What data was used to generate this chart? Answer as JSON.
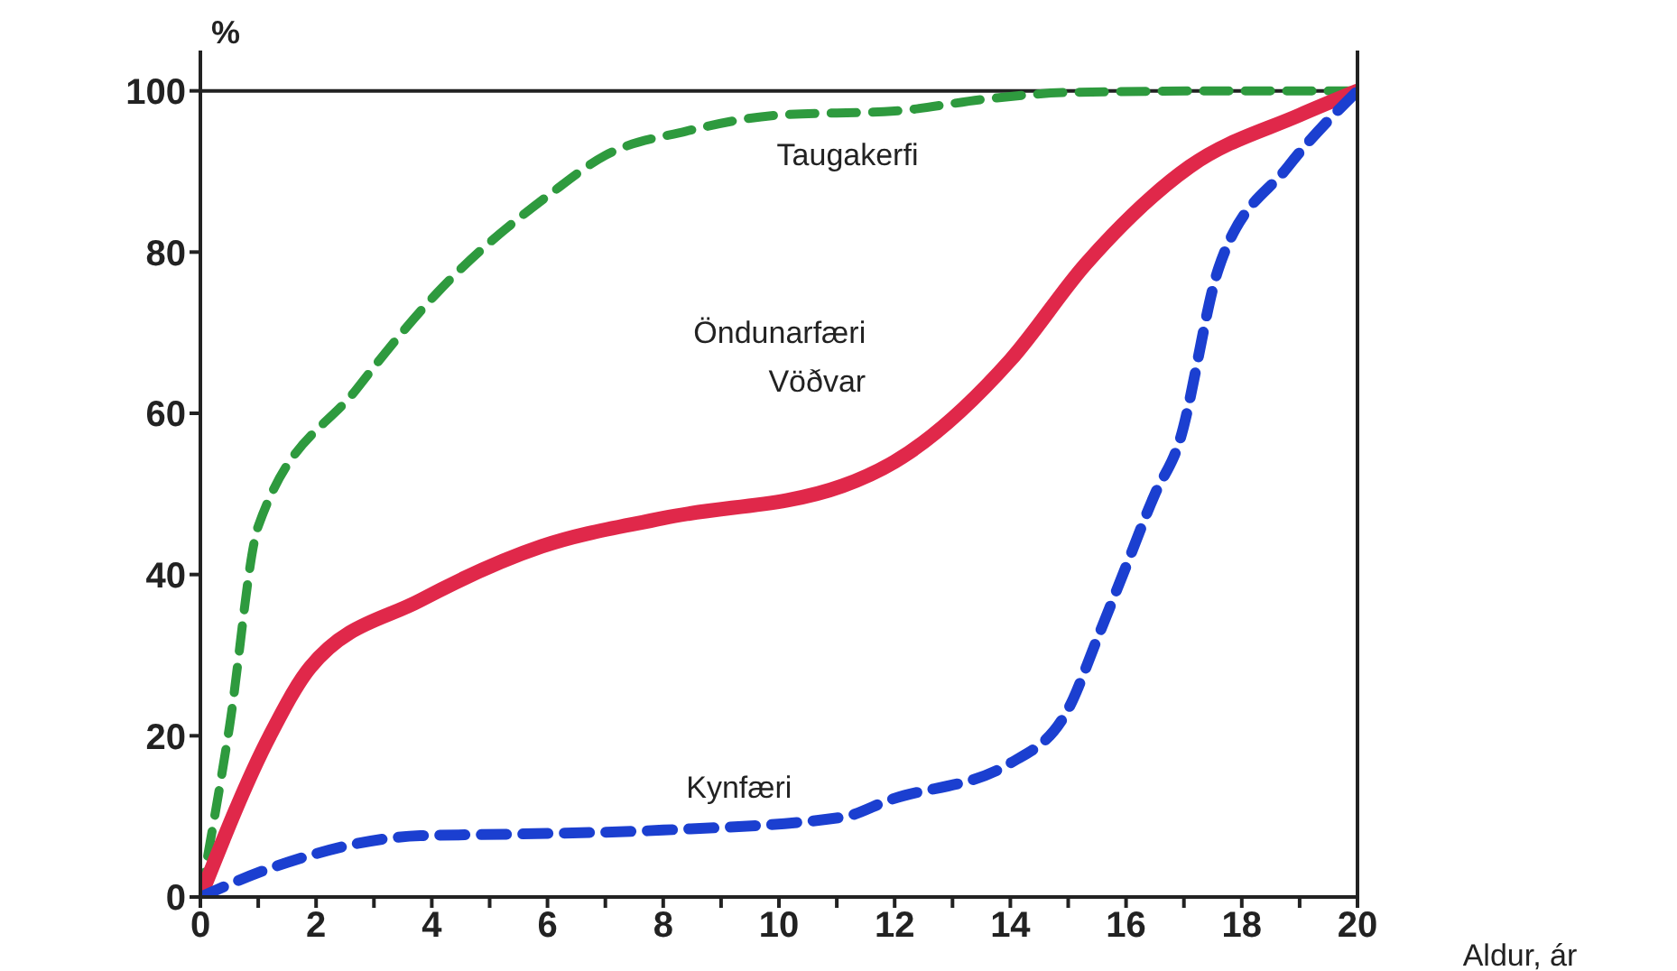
{
  "chart_data": {
    "type": "line",
    "xlabel": "Aldur, ár",
    "ylabel": "%",
    "xlim": [
      0,
      20
    ],
    "ylim": [
      0,
      105
    ],
    "xticks": [
      0,
      {
        "value": 1,
        "label": null
      },
      2,
      {
        "value": 3,
        "label": null
      },
      4,
      {
        "value": 5,
        "label": null
      },
      6,
      {
        "value": 7,
        "label": null
      },
      8,
      {
        "value": 9,
        "label": null
      },
      10,
      {
        "value": 11,
        "label": null
      },
      12,
      {
        "value": 13,
        "label": null
      },
      14,
      {
        "value": 15,
        "label": null
      },
      16,
      {
        "value": 17,
        "label": null
      },
      18,
      {
        "value": 19,
        "label": null
      },
      20
    ],
    "yticks": [
      0,
      20,
      40,
      60,
      80,
      100
    ],
    "ref_lines": [
      {
        "axis": "y",
        "value": 100,
        "label": null
      }
    ],
    "series": [
      {
        "name": "Taugakerfi",
        "color": "#2e9a3e",
        "line_style": "dashed",
        "x": [
          0,
          0.5,
          1,
          2.7,
          4.1,
          6.1,
          7,
          8.4,
          10,
          12,
          13.6,
          15,
          18,
          20
        ],
        "values": [
          0,
          21,
          46,
          63,
          75,
          87.5,
          92,
          95,
          97,
          97.5,
          99,
          99.8,
          100,
          100
        ]
      },
      {
        "name": "Öndunarfæri\nVöðvar",
        "color": "#e0284a",
        "line_style": "solid",
        "x": [
          0,
          1.2,
          1.9,
          3.8,
          5.9,
          8,
          11.1,
          12,
          14,
          15.3,
          17.1,
          19,
          20
        ],
        "values": [
          0,
          20,
          28.5,
          36.8,
          43.5,
          47,
          51,
          54,
          66.6,
          78.5,
          90.6,
          97,
          100
        ]
      },
      {
        "name": "Kynfæri",
        "color": "#1b3fd0",
        "line_style": "dashed",
        "x": [
          0,
          1.3,
          3.8,
          5.4,
          8,
          11.1,
          11.9,
          14,
          15,
          15.5,
          16,
          16.5,
          16.9,
          17.6,
          18.8,
          20
        ],
        "values": [
          0,
          3.8,
          7.6,
          7.8,
          8.3,
          9.9,
          12,
          16.6,
          23.3,
          32,
          41,
          50,
          56,
          78,
          90.6,
          100
        ]
      }
    ]
  }
}
